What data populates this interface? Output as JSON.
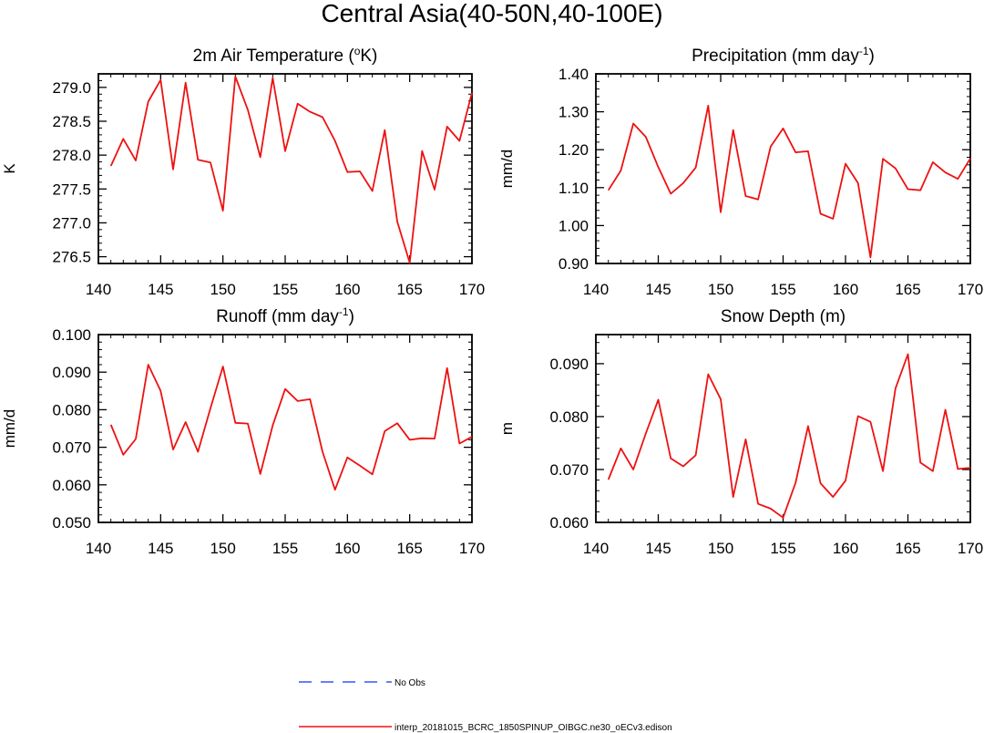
{
  "title": "Central Asia(40-50N,40-100E)",
  "legend": {
    "items": [
      {
        "label": "No Obs",
        "color": "#3355ff",
        "style": "dashed"
      },
      {
        "label": "interp_20181015_BCRC_1850SPINUP_OIBGC.ne30_oECv3.edison",
        "color": "#ee1111",
        "style": "solid"
      }
    ]
  },
  "chart_data": [
    {
      "type": "line",
      "title_main": "2m Air Temperature (",
      "title_sup": "o",
      "title_tail": "K)",
      "xlabel": "",
      "ylabel": "K",
      "xlim": [
        140,
        170
      ],
      "ylim": [
        276.4,
        279.2
      ],
      "xticks": [
        140,
        145,
        150,
        155,
        160,
        165,
        170
      ],
      "yticks": [
        276.5,
        277.0,
        277.5,
        278.0,
        278.5,
        279.0
      ],
      "ytick_labels": [
        "276.5",
        "277.0",
        "277.5",
        "278.0",
        "278.5",
        "279.0"
      ],
      "series": [
        {
          "name": "interp_20181015_BCRC_1850SPINUP_OIBGC.ne30_oECv3.edison",
          "x": [
            141,
            142,
            143,
            144,
            145,
            146,
            147,
            148,
            149,
            150,
            151,
            152,
            153,
            154,
            155,
            156,
            157,
            158,
            159,
            160,
            161,
            162,
            163,
            164,
            165,
            166,
            167,
            168,
            169,
            170
          ],
          "values": [
            277.84,
            278.24,
            277.92,
            278.79,
            279.11,
            277.79,
            279.07,
            277.93,
            277.89,
            277.18,
            279.16,
            278.67,
            277.97,
            279.14,
            278.06,
            278.76,
            278.64,
            278.56,
            278.21,
            277.75,
            277.76,
            277.47,
            278.37,
            277.02,
            276.41,
            278.06,
            277.49,
            278.42,
            278.21,
            278.92
          ]
        }
      ]
    },
    {
      "type": "line",
      "title_main": "Precipitation (mm day",
      "title_sup": "-1",
      "title_tail": ")",
      "xlabel": "",
      "ylabel": "mm/d",
      "xlim": [
        140,
        170
      ],
      "ylim": [
        0.9,
        1.4
      ],
      "xticks": [
        140,
        145,
        150,
        155,
        160,
        165,
        170
      ],
      "yticks": [
        0.9,
        1.0,
        1.1,
        1.2,
        1.3,
        1.4
      ],
      "ytick_labels": [
        "0.90",
        "1.00",
        "1.10",
        "1.20",
        "1.30",
        "1.40"
      ],
      "series": [
        {
          "name": "interp_20181015_BCRC_1850SPINUP_OIBGC.ne30_oECv3.edison",
          "x": [
            141,
            142,
            143,
            144,
            145,
            146,
            147,
            148,
            149,
            150,
            151,
            152,
            153,
            154,
            155,
            156,
            157,
            158,
            159,
            160,
            161,
            162,
            163,
            164,
            165,
            166,
            167,
            168,
            169,
            170
          ],
          "values": [
            1.093,
            1.145,
            1.269,
            1.234,
            1.154,
            1.084,
            1.112,
            1.153,
            1.316,
            1.035,
            1.252,
            1.078,
            1.069,
            1.208,
            1.256,
            1.193,
            1.196,
            1.031,
            1.018,
            1.163,
            1.112,
            0.916,
            1.176,
            1.151,
            1.096,
            1.093,
            1.167,
            1.14,
            1.123,
            1.177
          ]
        }
      ]
    },
    {
      "type": "line",
      "title_main": "Runoff (mm day",
      "title_sup": "-1",
      "title_tail": ")",
      "xlabel": "",
      "ylabel": "mm/d",
      "xlim": [
        140,
        170
      ],
      "ylim": [
        0.05,
        0.1
      ],
      "xticks": [
        140,
        145,
        150,
        155,
        160,
        165,
        170
      ],
      "yticks": [
        0.05,
        0.06,
        0.07,
        0.08,
        0.09,
        0.1
      ],
      "ytick_labels": [
        "0.050",
        "0.060",
        "0.070",
        "0.080",
        "0.090",
        "0.100"
      ],
      "series": [
        {
          "name": "interp_20181015_BCRC_1850SPINUP_OIBGC.ne30_oECv3.edison",
          "x": [
            141,
            142,
            143,
            144,
            145,
            146,
            147,
            148,
            149,
            150,
            151,
            152,
            153,
            154,
            155,
            156,
            157,
            158,
            159,
            160,
            161,
            162,
            163,
            164,
            165,
            166,
            167,
            168,
            169,
            170
          ],
          "values": [
            0.076,
            0.068,
            0.0722,
            0.092,
            0.085,
            0.0694,
            0.0767,
            0.0688,
            0.0804,
            0.0915,
            0.0765,
            0.0763,
            0.0629,
            0.0758,
            0.0855,
            0.0823,
            0.0828,
            0.0688,
            0.0587,
            0.0673,
            0.0651,
            0.0628,
            0.0743,
            0.0764,
            0.072,
            0.0724,
            0.0723,
            0.0911,
            0.071,
            0.0728
          ]
        }
      ]
    },
    {
      "type": "line",
      "title_main": "Snow Depth (m)",
      "title_sup": "",
      "title_tail": "",
      "xlabel": "",
      "ylabel": "m",
      "xlim": [
        140,
        170
      ],
      "ylim": [
        0.06,
        0.0955
      ],
      "xticks": [
        140,
        145,
        150,
        155,
        160,
        165,
        170
      ],
      "yticks": [
        0.06,
        0.07,
        0.08,
        0.09
      ],
      "ytick_labels": [
        "0.060",
        "0.070",
        "0.080",
        "0.090"
      ],
      "series": [
        {
          "name": "interp_20181015_BCRC_1850SPINUP_OIBGC.ne30_oECv3.edison",
          "x": [
            141,
            142,
            143,
            144,
            145,
            146,
            147,
            148,
            149,
            150,
            151,
            152,
            153,
            154,
            155,
            156,
            157,
            158,
            159,
            160,
            161,
            162,
            163,
            164,
            165,
            166,
            167,
            168,
            169,
            170
          ],
          "values": [
            0.0681,
            0.074,
            0.07,
            0.0768,
            0.0832,
            0.0721,
            0.0706,
            0.0727,
            0.088,
            0.0833,
            0.0648,
            0.0757,
            0.0635,
            0.0626,
            0.0609,
            0.0675,
            0.0782,
            0.0674,
            0.0648,
            0.0679,
            0.0801,
            0.079,
            0.0697,
            0.0853,
            0.0918,
            0.0713,
            0.0697,
            0.0813,
            0.0701,
            0.0703
          ]
        }
      ]
    }
  ]
}
